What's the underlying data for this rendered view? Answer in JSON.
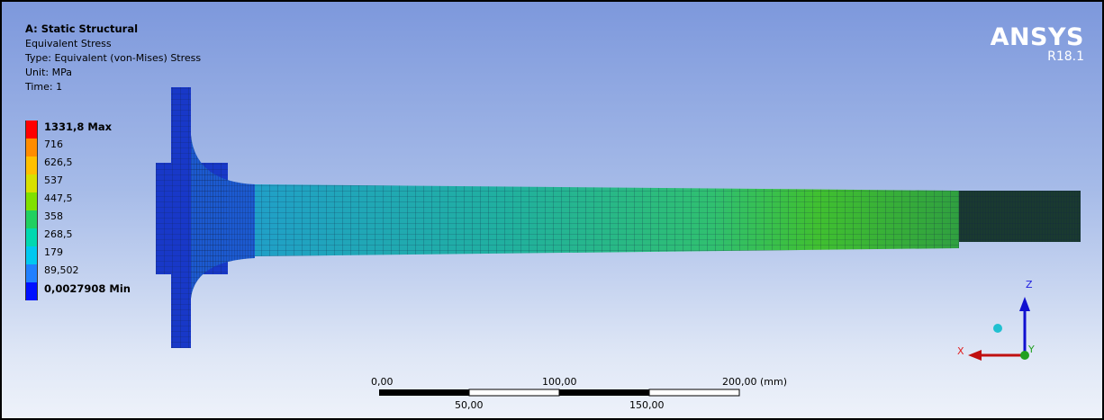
{
  "header": {
    "title": "A: Static Structural",
    "lines": [
      "Equivalent Stress",
      "Type: Equivalent (von-Mises) Stress",
      "Unit: MPa",
      "Time: 1"
    ]
  },
  "legend": [
    {
      "label": "1331,8 Max",
      "color": "#ff0000"
    },
    {
      "label": "716",
      "color": "#ff8c00"
    },
    {
      "label": "626,5",
      "color": "#ffc000"
    },
    {
      "label": "537",
      "color": "#d8e000"
    },
    {
      "label": "447,5",
      "color": "#80e000"
    },
    {
      "label": "358",
      "color": "#20d060"
    },
    {
      "label": "268,5",
      "color": "#00d8b0"
    },
    {
      "label": "179",
      "color": "#00c8f0"
    },
    {
      "label": "89,502",
      "color": "#2080ff"
    },
    {
      "label": "0,0027908 Min",
      "color": "#0010ff"
    }
  ],
  "logo": {
    "name": "ANSYS",
    "version": "R18.1"
  },
  "scale_bar": {
    "top_labels": [
      "0,00",
      "100,00",
      "200,00 (mm)"
    ],
    "bottom_labels": [
      "50,00",
      "150,00"
    ]
  },
  "triad": {
    "z": "Z",
    "x": "X",
    "y": "Y"
  }
}
